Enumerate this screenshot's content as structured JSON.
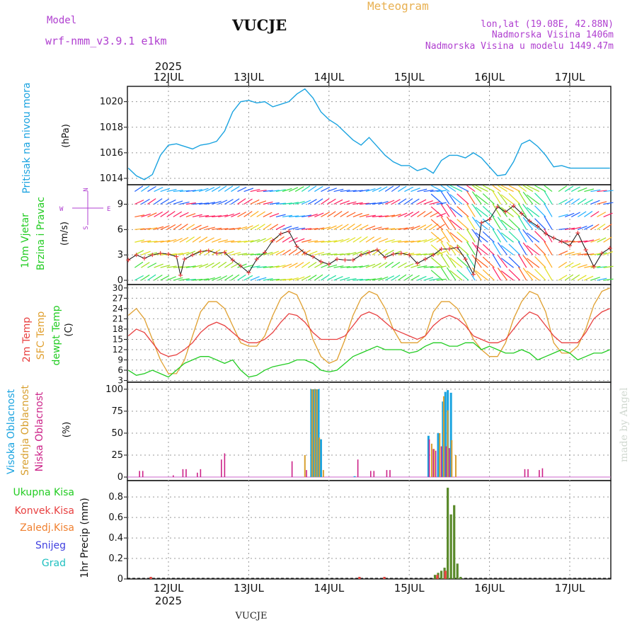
{
  "header": {
    "model_label": "Model",
    "model_name": "wrf-nmm_v3.9.1 e1km",
    "station": "VUCJE",
    "meteogram": "Meteogram",
    "lonlat": "lon,lat (19.08E, 42.88N)",
    "elevation": "Nadmorska Visina 1406m",
    "elevation_model": "Nadmorska Visina u modelu 1449.47m",
    "footer_station": "VUCJE",
    "watermark": "made by Angel"
  },
  "colors": {
    "pressure": "#1aa3e0",
    "wind_label": "#22cc22",
    "wind_dir": "#b040d0",
    "temp2m": "#e84040",
    "sfc": "#e0a030",
    "dewpt": "#22cc22",
    "cloud_high": "#1aa3e0",
    "cloud_mid": "#d8a030",
    "cloud_low": "#cc2288",
    "rain_total": "#22cc22",
    "rain_conv": "#e84040",
    "rain_frozen": "#f08030",
    "snow": "#4040e0",
    "hail": "#20c0c0",
    "header_purple": "#b040d0",
    "header_orange": "#e8b050"
  },
  "time_axis": {
    "year": "2025",
    "days": [
      "12JUL",
      "13JUL",
      "14JUL",
      "15JUL",
      "16JUL",
      "17JUL"
    ]
  },
  "panels": {
    "pressure": {
      "label": "Pritisak na nivou mora",
      "unit": "(hPa)"
    },
    "wind": {
      "label1": "10m Vjetar",
      "label2": "Brzina i Pravac",
      "unit": "(m/s)",
      "compass_n": "N",
      "compass_w": "W",
      "compass_e": "E",
      "compass_s": "S"
    },
    "temp": {
      "label1": "2m Temp",
      "label2": "SFC Temp",
      "label3": "dewpt Temp",
      "unit": "(C)"
    },
    "cloud": {
      "label1": "Visoka Oblacnost",
      "label2": "Srednja Oblacnost",
      "label3": "Niska Oblacnost",
      "unit": "(%)"
    },
    "precip": {
      "label_total": "Ukupna Kisa",
      "label_conv": "Konvek.Kisa",
      "label_frozen": "Zaledj.Kisa",
      "label_snow": "Snijeg",
      "label_hail": "Grad",
      "unit": "1hr Precip (mm)"
    }
  },
  "chart_data": [
    {
      "type": "line",
      "name": "pressure",
      "x_unit": "days since 12JUL 00UTC",
      "x": [
        -0.5,
        -0.4,
        -0.3,
        -0.2,
        -0.1,
        0,
        0.1,
        0.2,
        0.3,
        0.4,
        0.5,
        0.6,
        0.7,
        0.8,
        0.9,
        1.0,
        1.1,
        1.2,
        1.3,
        1.4,
        1.5,
        1.6,
        1.7,
        1.8,
        1.9,
        2.0,
        2.1,
        2.2,
        2.3,
        2.4,
        2.5,
        2.6,
        2.7,
        2.8,
        2.9,
        3.0,
        3.1,
        3.2,
        3.3,
        3.4,
        3.5,
        3.6,
        3.7,
        3.8,
        3.9,
        4.0,
        4.1,
        4.2,
        4.3,
        4.4,
        4.5,
        4.6,
        4.7,
        4.8,
        4.9,
        5.0,
        5.1,
        5.2,
        5.3,
        5.4,
        5.5
      ],
      "values": [
        1014.8,
        1014.2,
        1013.9,
        1014.3,
        1015.8,
        1016.6,
        1016.7,
        1016.5,
        1016.3,
        1016.6,
        1016.7,
        1016.9,
        1017.7,
        1019.2,
        1020.0,
        1020.1,
        1019.9,
        1020.0,
        1019.6,
        1019.8,
        1020.0,
        1020.6,
        1021.0,
        1020.3,
        1019.2,
        1018.6,
        1018.2,
        1017.6,
        1017.0,
        1016.6,
        1017.2,
        1016.5,
        1015.8,
        1015.3,
        1015.0,
        1015.0,
        1014.6,
        1014.8,
        1014.4,
        1015.4,
        1015.8,
        1015.8,
        1015.6,
        1016.0,
        1015.6,
        1014.9,
        1014.2,
        1014.3,
        1015.3,
        1016.7,
        1017.0,
        1016.5,
        1015.8,
        1014.9,
        1015.0,
        1014.8,
        1014.8,
        1014.8,
        1014.8,
        1014.8,
        1014.8
      ],
      "ylim": [
        1013.5,
        1021.2
      ],
      "yticks": [
        1014,
        1016,
        1018,
        1020
      ]
    },
    {
      "type": "line",
      "name": "wind_speed",
      "x_unit": "days since 12JUL 00UTC",
      "x": [
        -0.5,
        -0.4,
        -0.3,
        -0.2,
        -0.1,
        0,
        0.1,
        0.15,
        0.2,
        0.3,
        0.4,
        0.5,
        0.6,
        0.7,
        0.8,
        0.9,
        1.0,
        1.1,
        1.2,
        1.3,
        1.4,
        1.5,
        1.6,
        1.7,
        1.8,
        1.9,
        2.0,
        2.1,
        2.2,
        2.3,
        2.4,
        2.5,
        2.6,
        2.7,
        2.8,
        2.9,
        3.0,
        3.1,
        3.2,
        3.3,
        3.4,
        3.5,
        3.6,
        3.7,
        3.8,
        3.9,
        4.0,
        4.1,
        4.2,
        4.3,
        4.4,
        4.5,
        4.6,
        4.7,
        4.8,
        4.9,
        5.0,
        5.1,
        5.2,
        5.3,
        5.4,
        5.5
      ],
      "values": [
        2.4,
        3.0,
        2.6,
        3.0,
        3.2,
        3.1,
        2.8,
        0.6,
        2.5,
        3.0,
        3.4,
        3.5,
        3.2,
        3.3,
        2.4,
        1.7,
        0.9,
        2.5,
        3.3,
        4.7,
        5.5,
        5.8,
        4.0,
        3.2,
        2.8,
        2.2,
        1.9,
        2.5,
        2.4,
        2.4,
        3.0,
        3.3,
        3.6,
        2.7,
        3.1,
        3.2,
        3.0,
        2.0,
        2.5,
        3.0,
        3.7,
        3.7,
        3.9,
        2.5,
        0.7,
        6.8,
        7.2,
        8.7,
        8.1,
        8.8,
        7.9,
        7.0,
        6.4,
        5.5,
        5.0,
        4.6,
        4.1,
        5.6,
        3.6,
        1.6,
        3.2,
        3.8
      ],
      "ylim": [
        -0.5,
        11.3
      ],
      "yticks": [
        0,
        3,
        6,
        9
      ]
    },
    {
      "type": "line",
      "name": "temperature",
      "x_unit": "days since 12JUL 00UTC",
      "x": [
        -0.5,
        -0.4,
        -0.3,
        -0.2,
        -0.1,
        0,
        0.1,
        0.2,
        0.3,
        0.4,
        0.5,
        0.6,
        0.7,
        0.8,
        0.9,
        1.0,
        1.1,
        1.2,
        1.3,
        1.4,
        1.5,
        1.6,
        1.7,
        1.8,
        1.9,
        2.0,
        2.1,
        2.2,
        2.3,
        2.4,
        2.5,
        2.6,
        2.7,
        2.8,
        2.9,
        3.0,
        3.1,
        3.2,
        3.3,
        3.4,
        3.5,
        3.6,
        3.7,
        3.8,
        3.9,
        4.0,
        4.1,
        4.2,
        4.3,
        4.4,
        4.5,
        4.6,
        4.7,
        4.8,
        4.9,
        5.0,
        5.1,
        5.2,
        5.3,
        5.4,
        5.5
      ],
      "series": [
        {
          "name": "2m Temp",
          "values": [
            16,
            18,
            17,
            14,
            11,
            10,
            10.5,
            12,
            14,
            17,
            19,
            20,
            19,
            17,
            15,
            14,
            14,
            15,
            17,
            20,
            22.5,
            22,
            20,
            17,
            15,
            15,
            15,
            16,
            19,
            22,
            23,
            22,
            20,
            18,
            17,
            16,
            15,
            16,
            19,
            21,
            22,
            21,
            19,
            16,
            15,
            14,
            14,
            15,
            18,
            21,
            23,
            22,
            19,
            16,
            14,
            14,
            14,
            17,
            21,
            23,
            24
          ]
        },
        {
          "name": "SFC Temp",
          "values": [
            22,
            24,
            21,
            15,
            9,
            5,
            5,
            9,
            16,
            23,
            26,
            26,
            24,
            19,
            14,
            13,
            13,
            16,
            22,
            27,
            29,
            28,
            23,
            15,
            10,
            8,
            9,
            15,
            22,
            27,
            29,
            28,
            24,
            18,
            14,
            14,
            14,
            16,
            23,
            26,
            26,
            24,
            20,
            15,
            12,
            10,
            10,
            14,
            21,
            26,
            29,
            28,
            23,
            14,
            11,
            11,
            13,
            18,
            25,
            29,
            30
          ]
        },
        {
          "name": "dewpt Temp",
          "values": [
            6,
            4.5,
            5,
            6,
            5,
            4,
            6,
            8,
            9,
            10,
            10,
            9,
            8,
            9,
            6,
            4,
            4.5,
            6,
            7,
            7.5,
            8,
            9,
            9,
            8,
            6,
            5.5,
            6,
            8,
            10,
            11,
            12,
            13,
            12,
            12,
            12,
            11,
            11.5,
            13,
            14,
            14,
            13,
            13,
            14,
            14,
            12,
            13,
            12,
            11,
            11,
            12,
            11,
            9,
            10,
            11,
            12,
            11,
            9,
            10,
            11,
            11,
            12
          ]
        }
      ],
      "ylim": [
        2.5,
        31
      ],
      "yticks": [
        3,
        6,
        9,
        12,
        15,
        18,
        21,
        24,
        27,
        30
      ]
    },
    {
      "type": "bar",
      "name": "cloud_cover",
      "x_unit": "days since 12JUL 00UTC",
      "series": [
        {
          "name": "Visoka Oblacnost",
          "x": [
            1.78,
            1.81,
            1.84,
            1.87,
            1.9,
            2.32,
            3.24,
            3.36,
            3.42,
            3.45,
            3.48,
            3.52,
            3.56
          ],
          "values": [
            100,
            100,
            100,
            100,
            43,
            1,
            47,
            50,
            86,
            97,
            99,
            96,
            0
          ]
        },
        {
          "name": "Srednja Oblacnost",
          "x": [
            1.7,
            1.79,
            1.82,
            1.85,
            1.88,
            1.93,
            3.28,
            3.31,
            3.38,
            3.43,
            3.48,
            3.53,
            3.58
          ],
          "values": [
            25,
            100,
            100,
            100,
            45,
            8,
            38,
            32,
            50,
            92,
            76,
            42,
            25
          ]
        },
        {
          "name": "Niska Oblacnost",
          "x": [
            -0.36,
            -0.32,
            0.06,
            0.18,
            0.22,
            0.36,
            0.4,
            0.66,
            0.7,
            1.54,
            1.72,
            2.36,
            2.52,
            2.56,
            2.72,
            2.76,
            3.25,
            3.3,
            3.33,
            3.4,
            3.46,
            3.5,
            4.44,
            4.48,
            4.62,
            4.66
          ],
          "values": [
            7,
            7,
            2,
            9,
            9,
            5,
            9,
            20,
            27,
            18,
            8,
            20,
            7,
            7,
            8,
            8,
            43,
            32,
            30,
            35,
            35,
            33,
            9,
            9,
            8,
            10
          ]
        }
      ],
      "ylim": [
        -4,
        108
      ],
      "yticks": [
        0,
        25,
        50,
        75,
        100
      ]
    },
    {
      "type": "bar",
      "name": "precipitation",
      "x_unit": "days since 12JUL 00UTC",
      "series": [
        {
          "name": "Ukupna Kisa",
          "x": [
            -0.22,
            2.38,
            2.69,
            3.32,
            3.36,
            3.4,
            3.44,
            3.48,
            3.52,
            3.56,
            3.6,
            3.64
          ],
          "values": [
            0.02,
            0.02,
            0.02,
            0.04,
            0.06,
            0.08,
            0.11,
            0.89,
            0.63,
            0.72,
            0.15,
            0.02
          ]
        },
        {
          "name": "Konvek.Kisa",
          "x": [
            -0.22,
            2.38,
            2.69,
            3.35,
            3.45
          ],
          "values": [
            0.02,
            0.02,
            0.02,
            0.04,
            0.08
          ]
        }
      ],
      "ylim": [
        0,
        0.96
      ],
      "yticks": [
        0,
        0.2,
        0.4,
        0.6,
        0.8
      ]
    }
  ]
}
